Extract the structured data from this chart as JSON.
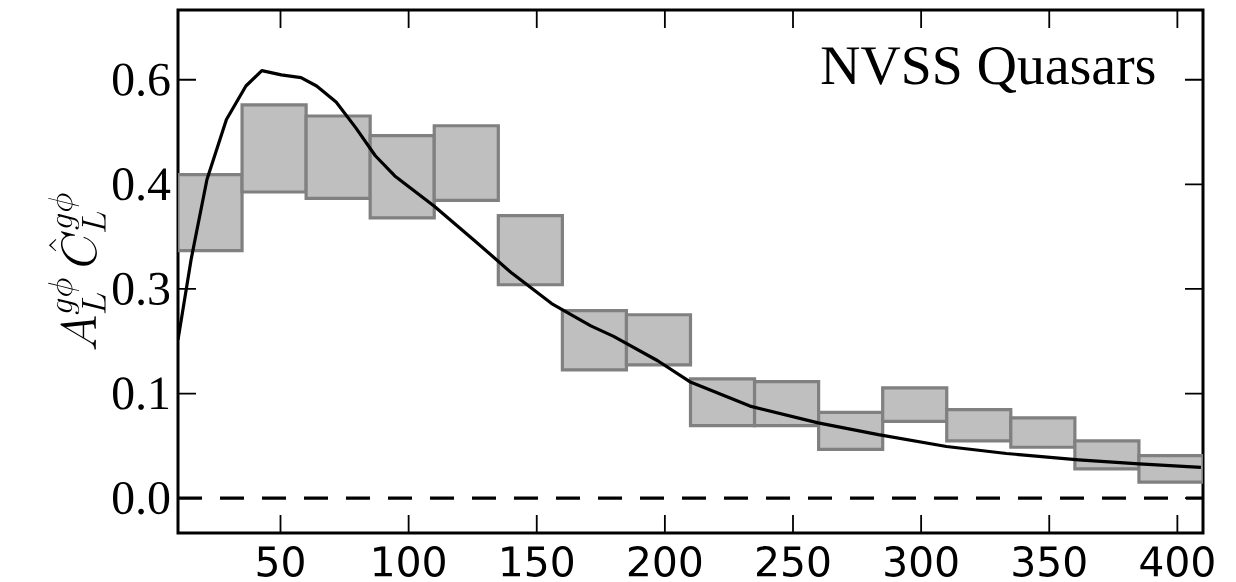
{
  "chart_data": {
    "type": "bar",
    "annotations": [
      {
        "text": "NVSS Quasars"
      }
    ],
    "ylabel": "A_L^{g\\phi}\\,\\hat{C}_L^{g\\phi}",
    "x": [
      22.5,
      47.5,
      72.5,
      97.5,
      122.5,
      147.5,
      172.5,
      197.5,
      222.5,
      247.5,
      272.5,
      297.5,
      322.5,
      347.5,
      372.5,
      397.5
    ],
    "series": [
      {
        "color": "#bfbfbf",
        "base": [
          0.355,
          0.439,
          0.43,
          0.402,
          0.427,
          0.306,
          0.184,
          0.191,
          0.104,
          0.104,
          0.07,
          0.11,
          0.082,
          0.073,
          0.042,
          0.023
        ],
        "values": [
          0.109,
          0.125,
          0.118,
          0.118,
          0.107,
          0.099,
          0.085,
          0.072,
          0.067,
          0.063,
          0.053,
          0.048,
          0.045,
          0.042,
          0.04,
          0.038
        ]
      },
      {
        "type": "line",
        "color": "#000000",
        "x": [
          10,
          15.1,
          21.3,
          28.9,
          36.5,
          42.7,
          50.3,
          58.0,
          64.1,
          71.7,
          79.4,
          87.0,
          94.6,
          109.9,
          125.2,
          140.5,
          155.8,
          171.1,
          180.0,
          197.2,
          209.7,
          233.2,
          259.8,
          283.3,
          309.9,
          333.3,
          361.5,
          385.0,
          409.2
        ],
        "values": [
          0.227,
          0.342,
          0.457,
          0.543,
          0.591,
          0.613,
          0.607,
          0.603,
          0.591,
          0.568,
          0.531,
          0.491,
          0.462,
          0.419,
          0.371,
          0.322,
          0.279,
          0.247,
          0.232,
          0.197,
          0.167,
          0.132,
          0.108,
          0.091,
          0.074,
          0.064,
          0.055,
          0.049,
          0.044
        ]
      }
    ],
    "ref_lines": [
      {
        "axis": "y",
        "value": 0,
        "color": "#000000",
        "line_style": "dashed"
      }
    ],
    "xlim": [
      10,
      410
    ],
    "ylim": [
      -0.05,
      0.7
    ],
    "xticks": [
      50,
      100,
      150,
      200,
      250,
      300,
      350,
      400
    ],
    "yticks": [
      {
        "value": 0,
        "label": "0.0"
      },
      {
        "value": 0.15,
        "label": "0.1"
      },
      0.3,
      {
        "value": 0.45,
        "label": "0.4"
      },
      0.6
    ],
    "grid": false
  }
}
